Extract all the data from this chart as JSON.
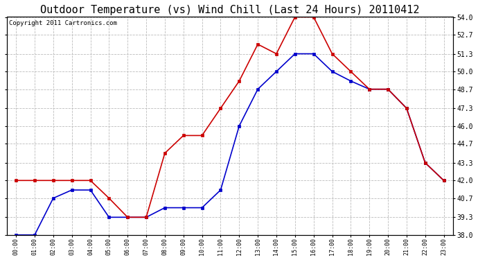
{
  "title": "Outdoor Temperature (vs) Wind Chill (Last 24 Hours) 20110412",
  "copyright": "Copyright 2011 Cartronics.com",
  "x_labels": [
    "00:00",
    "01:00",
    "02:00",
    "03:00",
    "04:00",
    "05:00",
    "06:00",
    "07:00",
    "08:00",
    "09:00",
    "10:00",
    "11:00",
    "12:00",
    "13:00",
    "14:00",
    "15:00",
    "16:00",
    "17:00",
    "18:00",
    "19:00",
    "20:00",
    "21:00",
    "22:00",
    "23:00"
  ],
  "outdoor_temp": [
    38.0,
    38.0,
    40.7,
    41.3,
    41.3,
    39.3,
    39.3,
    39.3,
    40.0,
    40.0,
    40.0,
    41.3,
    46.0,
    48.7,
    50.0,
    51.3,
    51.3,
    50.0,
    49.3,
    48.7,
    48.7,
    47.3,
    43.3,
    42.0
  ],
  "wind_chill": [
    42.0,
    42.0,
    42.0,
    42.0,
    42.0,
    40.7,
    39.3,
    39.3,
    44.0,
    45.3,
    45.3,
    47.3,
    49.3,
    52.0,
    51.3,
    54.0,
    54.0,
    51.3,
    50.0,
    48.7,
    48.7,
    47.3,
    43.3,
    42.0
  ],
  "temp_color": "#0000cc",
  "wind_color": "#cc0000",
  "bg_color": "#ffffff",
  "plot_bg_color": "#ffffff",
  "grid_color": "#bbbbbb",
  "ylim": [
    38.0,
    54.0
  ],
  "yticks": [
    38.0,
    39.3,
    40.7,
    42.0,
    43.3,
    44.7,
    46.0,
    47.3,
    48.7,
    50.0,
    51.3,
    52.7,
    54.0
  ],
  "title_fontsize": 11,
  "copyright_fontsize": 6.5,
  "marker_size": 3.5,
  "line_width": 1.2
}
